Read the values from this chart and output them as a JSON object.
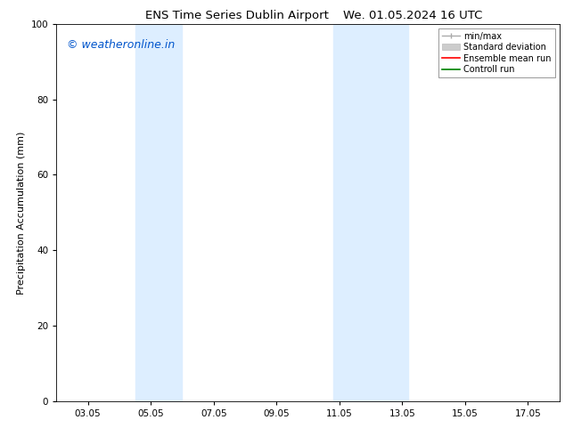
{
  "title_left": "ENS Time Series Dublin Airport",
  "title_right": "We. 01.05.2024 16 UTC",
  "ylabel": "Precipitation Accumulation (mm)",
  "ylim": [
    0,
    100
  ],
  "yticks": [
    0,
    20,
    40,
    60,
    80,
    100
  ],
  "xlim": [
    2.0,
    18.0
  ],
  "xtick_labels": [
    "03.05",
    "05.05",
    "07.05",
    "09.05",
    "11.05",
    "13.05",
    "15.05",
    "17.05"
  ],
  "xtick_positions": [
    3,
    5,
    7,
    9,
    11,
    13,
    15,
    17
  ],
  "shaded_bands": [
    {
      "x_start": 4.5,
      "x_end": 6.0
    },
    {
      "x_start": 10.8,
      "x_end": 13.2
    }
  ],
  "shaded_color": "#ddeeff",
  "watermark_text": "© weatheronline.in",
  "watermark_color": "#0055cc",
  "watermark_fontsize": 9,
  "fig_width": 6.34,
  "fig_height": 4.9,
  "dpi": 100,
  "background_color": "#ffffff",
  "font_color": "#000000",
  "title_fontsize": 9.5,
  "axis_label_fontsize": 8,
  "tick_fontsize": 7.5
}
